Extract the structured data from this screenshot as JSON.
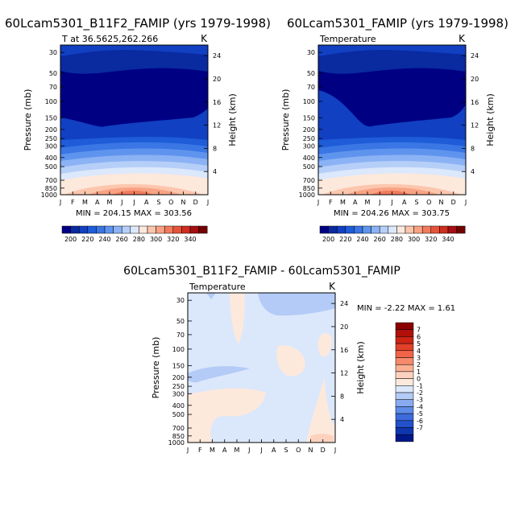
{
  "chart_data": [
    {
      "type": "heatmap",
      "title": "60Lcam5301_B11F2_FAMIP (yrs 1979-1998)",
      "subtitle": "T at 36.5625,262.266",
      "units": "K",
      "xlabel": "",
      "ylabel": "Pressure (mb)",
      "ylabel_right": "Height (km)",
      "x_ticks": [
        "J",
        "F",
        "M",
        "A",
        "M",
        "J",
        "J",
        "A",
        "S",
        "O",
        "N",
        "D",
        "J"
      ],
      "y_ticks": [
        "30",
        "50",
        "70",
        "100",
        "150",
        "200",
        "250",
        "300",
        "400",
        "500",
        "700",
        "850",
        "1000"
      ],
      "y_ticks_right": [
        "24",
        "20",
        "16",
        "12",
        "8",
        "4"
      ],
      "stats": "MIN = 204.15   MAX = 303.56",
      "min": 204.15,
      "max": 303.56,
      "colorbar_levels": [
        "200",
        "220",
        "240",
        "260",
        "280",
        "300",
        "320",
        "340"
      ],
      "colorbar_colors": [
        "#000083",
        "#0a2aa0",
        "#1140c2",
        "#1e5cd8",
        "#3a76e4",
        "#5f94ee",
        "#8bb2f4",
        "#b6cff8",
        "#dce8fb",
        "#fde8dc",
        "#fcc6ad",
        "#f9a284",
        "#f27b5c",
        "#e6533b",
        "#cf2e20",
        "#a60f12",
        "#740000"
      ]
    },
    {
      "type": "heatmap",
      "title": "60Lcam5301_FAMIP (yrs 1979-1998)",
      "subtitle": "Temperature",
      "units": "K",
      "xlabel": "",
      "ylabel": "Pressure (mb)",
      "ylabel_right": "Height (km)",
      "x_ticks": [
        "J",
        "F",
        "M",
        "A",
        "M",
        "J",
        "J",
        "A",
        "S",
        "O",
        "N",
        "D",
        "J"
      ],
      "y_ticks": [
        "30",
        "50",
        "70",
        "100",
        "150",
        "200",
        "250",
        "300",
        "400",
        "500",
        "700",
        "850",
        "1000"
      ],
      "y_ticks_right": [
        "24",
        "20",
        "16",
        "12",
        "8",
        "4"
      ],
      "stats": "MIN = 204.26   MAX = 303.75",
      "min": 204.26,
      "max": 303.75,
      "colorbar_levels": [
        "200",
        "220",
        "240",
        "260",
        "280",
        "300",
        "320",
        "340"
      ]
    },
    {
      "type": "heatmap",
      "title": "60Lcam5301_B11F2_FAMIP - 60Lcam5301_FAMIP",
      "subtitle": "Temperature",
      "units": "K",
      "xlabel": "",
      "ylabel": "Pressure (mb)",
      "ylabel_right": "Height (km)",
      "x_ticks": [
        "J",
        "F",
        "M",
        "A",
        "M",
        "J",
        "J",
        "A",
        "S",
        "O",
        "N",
        "D",
        "J"
      ],
      "y_ticks": [
        "30",
        "50",
        "70",
        "100",
        "150",
        "200",
        "250",
        "300",
        "400",
        "500",
        "700",
        "850",
        "1000"
      ],
      "y_ticks_right": [
        "24",
        "20",
        "16",
        "12",
        "8",
        "4"
      ],
      "stats": "MIN =  -2.22  MAX =     1.61",
      "min": -2.22,
      "max": 1.61,
      "colorbar_levels": [
        "7",
        "6",
        "5",
        "4",
        "3",
        "2",
        "1",
        "0",
        "-1",
        "-2",
        "-3",
        "-4",
        "-5",
        "-6",
        "-7"
      ],
      "colorbar_colors": [
        "#8b0000",
        "#b0100a",
        "#cd2414",
        "#e2412a",
        "#f06448",
        "#f78a6c",
        "#fbb094",
        "#fcd2bf",
        "#fde9dc",
        "#dbe7fb",
        "#b3cbf6",
        "#88abf0",
        "#5f8ce8",
        "#3c6cdc",
        "#2350cb",
        "#0f36ad",
        "#00178a"
      ]
    }
  ]
}
